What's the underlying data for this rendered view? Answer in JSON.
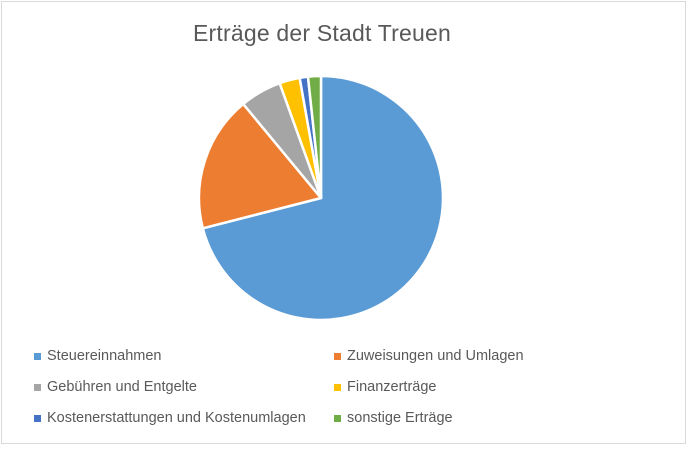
{
  "chart_data": {
    "type": "pie",
    "title": "Erträge der Stadt Treuen",
    "categories": [
      "Steuereinnahmen",
      "Zuweisungen und Umlagen",
      "Gebühren und Entgelte",
      "Finanzerträge",
      "Kostenerstattungen und Kostenumlagen",
      "sonstige Erträge"
    ],
    "values": [
      71,
      18,
      5.5,
      2.7,
      1.1,
      1.7
    ],
    "colors": [
      "#5b9bd5",
      "#ed7d31",
      "#a5a5a5",
      "#ffc000",
      "#4472c4",
      "#70ad47"
    ],
    "legend_position": "bottom"
  }
}
